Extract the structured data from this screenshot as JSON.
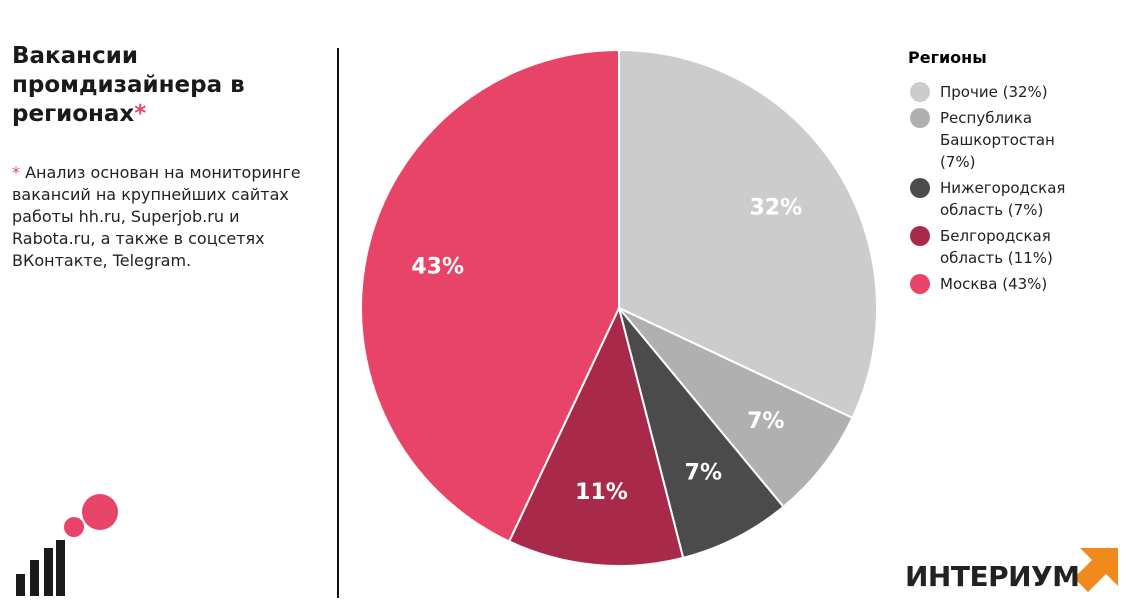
{
  "chart_data": {
    "type": "pie",
    "title": "Вакансии промдизайнера в регионах",
    "title_mark": "*",
    "footnote_mark": "*",
    "footnote": "Анализ основан на мониторинге вакансий на крупнейших сайтах работы hh.ru, Superjob.ru и Rabota.ru, а также в соцсетях ВКонтакте, Telegram.",
    "legend_title": "Регионы",
    "categories": [
      "Прочие (32%)",
      "Республика Башкортостан (7%)",
      "Нижегородская область (7%)",
      "Белгородская область (11%)",
      "Москва (43%)"
    ],
    "values": [
      32,
      7,
      7,
      11,
      43
    ],
    "value_labels": [
      "32%",
      "7%",
      "7%",
      "11%",
      "43%"
    ],
    "colors": [
      "#cccccc",
      "#b0b0b0",
      "#4b4b4b",
      "#a9294b",
      "#e84467"
    ],
    "legend_position": "right"
  },
  "logo": "ИНТЕРИУМ"
}
